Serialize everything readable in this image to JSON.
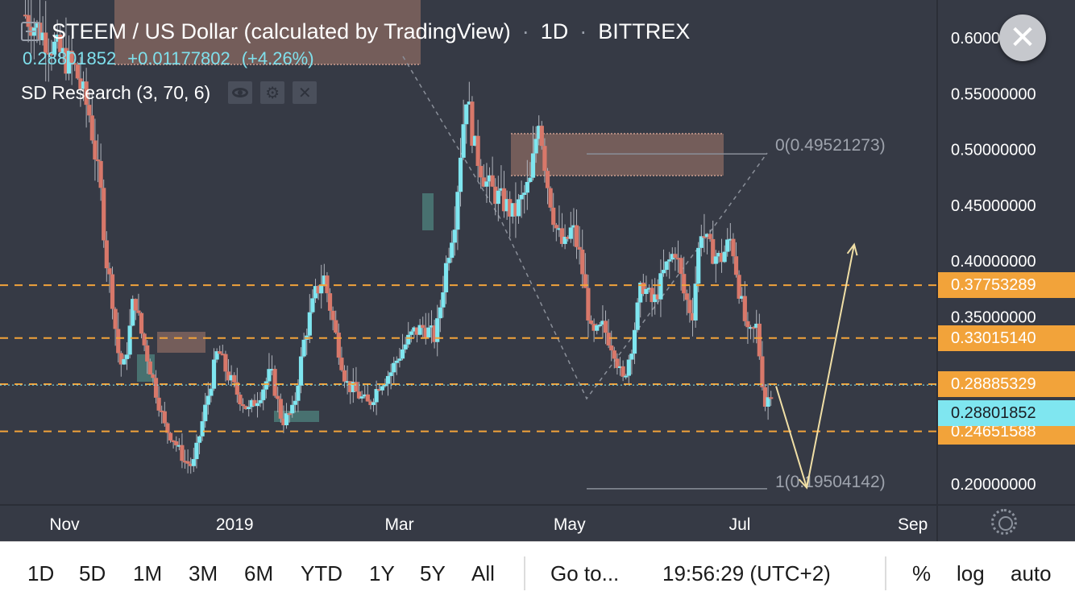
{
  "header": {
    "symbol_title": "STEEM / US Dollar (calculated by TradingView)",
    "interval": "1D",
    "exchange": "BITTREX",
    "last_price": "0.28801852",
    "change": "+0.01177802",
    "change_percent": "(+4.26%)",
    "indicator_name": "SD Research (3, 70, 6)",
    "separator": "·"
  },
  "colors": {
    "background": "#363a45",
    "up_candle": "#7fe6f0",
    "down_candle": "#d8786a",
    "level_line": "#f2a33a",
    "projection": "#f0dfa6",
    "supply_zone": "#8a6a62",
    "demand_zone": "#4d7f7a"
  },
  "chart_data": {
    "type": "candlestick",
    "title": "STEEM / US Dollar (calculated by TradingView)",
    "interval": "1D",
    "exchange": "BITTREX",
    "x_ticks": [
      "Nov",
      "2019",
      "Mar",
      "May",
      "Jul",
      "Sep"
    ],
    "y_ticks": [
      "0.20000000",
      "0.35000000",
      "0.40000000",
      "0.45000000",
      "0.50000000",
      "0.55000000",
      "0.60000000"
    ],
    "ylim": [
      0.18,
      0.63
    ],
    "price_levels": [
      {
        "label": "0.37753289",
        "value": 0.37753289
      },
      {
        "label": "0.33015140",
        "value": 0.3301514
      },
      {
        "label": "0.28885329",
        "value": 0.28885329
      },
      {
        "label": "0.24651588",
        "value": 0.24651588
      }
    ],
    "current_price": {
      "label": "0.28801852",
      "value": 0.28801852
    },
    "fib_levels": [
      {
        "label": "0(0.49521273)",
        "value": 0.49521273
      },
      {
        "label": "1(0.19504142)",
        "value": 0.19504142
      }
    ],
    "close_path": [
      {
        "date": "2018-10-18",
        "close": 0.62
      },
      {
        "date": "2018-10-25",
        "close": 0.6
      },
      {
        "date": "2018-11-05",
        "close": 0.57
      },
      {
        "date": "2018-11-10",
        "close": 0.53
      },
      {
        "date": "2018-11-14",
        "close": 0.46
      },
      {
        "date": "2018-11-16",
        "close": 0.4
      },
      {
        "date": "2018-11-18",
        "close": 0.37
      },
      {
        "date": "2018-11-20",
        "close": 0.32
      },
      {
        "date": "2018-11-22",
        "close": 0.3
      },
      {
        "date": "2018-11-24",
        "close": 0.33
      },
      {
        "date": "2018-11-26",
        "close": 0.37
      },
      {
        "date": "2018-11-28",
        "close": 0.34
      },
      {
        "date": "2018-12-01",
        "close": 0.31
      },
      {
        "date": "2018-12-04",
        "close": 0.28
      },
      {
        "date": "2018-12-07",
        "close": 0.25
      },
      {
        "date": "2018-12-10",
        "close": 0.24
      },
      {
        "date": "2018-12-14",
        "close": 0.22
      },
      {
        "date": "2018-12-17",
        "close": 0.215
      },
      {
        "date": "2018-12-20",
        "close": 0.25
      },
      {
        "date": "2018-12-23",
        "close": 0.285
      },
      {
        "date": "2018-12-26",
        "close": 0.32
      },
      {
        "date": "2018-12-29",
        "close": 0.3
      },
      {
        "date": "2019-01-02",
        "close": 0.28
      },
      {
        "date": "2019-01-06",
        "close": 0.265
      },
      {
        "date": "2019-01-10",
        "close": 0.28
      },
      {
        "date": "2019-01-14",
        "close": 0.3
      },
      {
        "date": "2019-01-18",
        "close": 0.255
      },
      {
        "date": "2019-01-22",
        "close": 0.265
      },
      {
        "date": "2019-01-26",
        "close": 0.33
      },
      {
        "date": "2019-01-30",
        "close": 0.37
      },
      {
        "date": "2019-02-02",
        "close": 0.385
      },
      {
        "date": "2019-02-06",
        "close": 0.335
      },
      {
        "date": "2019-02-10",
        "close": 0.29
      },
      {
        "date": "2019-02-14",
        "close": 0.28
      },
      {
        "date": "2019-02-18",
        "close": 0.27
      },
      {
        "date": "2019-02-22",
        "close": 0.29
      },
      {
        "date": "2019-02-26",
        "close": 0.3
      },
      {
        "date": "2019-03-02",
        "close": 0.32
      },
      {
        "date": "2019-03-06",
        "close": 0.335
      },
      {
        "date": "2019-03-10",
        "close": 0.34
      },
      {
        "date": "2019-03-14",
        "close": 0.33
      },
      {
        "date": "2019-03-18",
        "close": 0.4
      },
      {
        "date": "2019-03-21",
        "close": 0.44
      },
      {
        "date": "2019-03-23",
        "close": 0.5
      },
      {
        "date": "2019-03-25",
        "close": 0.55
      },
      {
        "date": "2019-03-28",
        "close": 0.5
      },
      {
        "date": "2019-04-01",
        "close": 0.47
      },
      {
        "date": "2019-04-04",
        "close": 0.46
      },
      {
        "date": "2019-04-08",
        "close": 0.45
      },
      {
        "date": "2019-04-11",
        "close": 0.44
      },
      {
        "date": "2019-04-14",
        "close": 0.455
      },
      {
        "date": "2019-04-17",
        "close": 0.47
      },
      {
        "date": "2019-04-20",
        "close": 0.53
      },
      {
        "date": "2019-04-23",
        "close": 0.47
      },
      {
        "date": "2019-04-26",
        "close": 0.43
      },
      {
        "date": "2019-04-29",
        "close": 0.41
      },
      {
        "date": "2019-05-02",
        "close": 0.43
      },
      {
        "date": "2019-05-05",
        "close": 0.4
      },
      {
        "date": "2019-05-09",
        "close": 0.33
      },
      {
        "date": "2019-05-13",
        "close": 0.34
      },
      {
        "date": "2019-05-17",
        "close": 0.32
      },
      {
        "date": "2019-05-20",
        "close": 0.29
      },
      {
        "date": "2019-05-23",
        "close": 0.32
      },
      {
        "date": "2019-05-27",
        "close": 0.38
      },
      {
        "date": "2019-05-31",
        "close": 0.36
      },
      {
        "date": "2019-06-04",
        "close": 0.39
      },
      {
        "date": "2019-06-08",
        "close": 0.41
      },
      {
        "date": "2019-06-11",
        "close": 0.37
      },
      {
        "date": "2019-06-14",
        "close": 0.35
      },
      {
        "date": "2019-06-17",
        "close": 0.43
      },
      {
        "date": "2019-06-20",
        "close": 0.41
      },
      {
        "date": "2019-06-24",
        "close": 0.4
      },
      {
        "date": "2019-06-28",
        "close": 0.42
      },
      {
        "date": "2019-07-01",
        "close": 0.37
      },
      {
        "date": "2019-07-04",
        "close": 0.33
      },
      {
        "date": "2019-07-07",
        "close": 0.34
      },
      {
        "date": "2019-07-10",
        "close": 0.27
      },
      {
        "date": "2019-07-13",
        "close": 0.28801852
      }
    ],
    "projection_path": [
      {
        "date": "2019-07-14",
        "value": 0.287
      },
      {
        "date": "2019-07-25",
        "value": 0.196
      },
      {
        "date": "2019-08-11",
        "value": 0.414
      }
    ]
  },
  "toolbar": {
    "ranges": [
      "1D",
      "5D",
      "1M",
      "3M",
      "6M",
      "YTD",
      "1Y",
      "5Y",
      "All"
    ],
    "goto": "Go to...",
    "time": "19:56:29 (UTC+2)",
    "percent": "%",
    "log": "log",
    "auto": "auto"
  }
}
